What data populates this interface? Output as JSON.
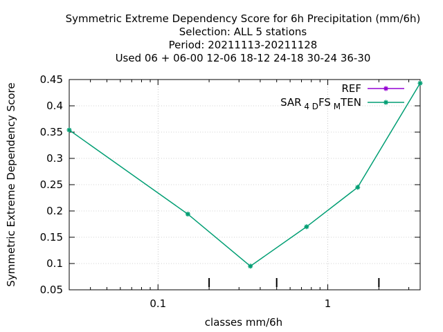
{
  "chart_data": {
    "type": "line",
    "title_lines": [
      "Symmetric Extreme Dependency Score  for 6h Precipitation (mm/6h)",
      "Selection: ALL      5 stations",
      "Period: 20211113-20211128",
      "Used  06  + 06-00 12-06 18-12 24-18 30-24 36-30"
    ],
    "xlabel": "classes mm/6h",
    "ylabel": "Symmetric Extreme Dependency Score",
    "xscale": "log",
    "xlim": [
      0.03,
      3.5
    ],
    "ylim": [
      0.05,
      0.45
    ],
    "grid": true,
    "legend_position": "top-right",
    "x_ticks": [
      {
        "value": 0.1,
        "label": "0.1"
      },
      {
        "value": 1,
        "label": "1"
      }
    ],
    "x_minor_ticks": [
      0.04,
      0.05,
      0.06,
      0.07,
      0.08,
      0.09,
      0.2,
      0.3,
      0.4,
      0.5,
      0.6,
      0.7,
      0.8,
      0.9,
      2,
      3
    ],
    "x_extra_ticks": [
      0.2,
      0.5,
      2
    ],
    "y_ticks": [
      {
        "value": 0.05,
        "label": "0.05"
      },
      {
        "value": 0.1,
        "label": "0.1"
      },
      {
        "value": 0.15,
        "label": "0.15"
      },
      {
        "value": 0.2,
        "label": "0.2"
      },
      {
        "value": 0.25,
        "label": "0.25"
      },
      {
        "value": 0.3,
        "label": "0.3"
      },
      {
        "value": 0.35,
        "label": "0.35"
      },
      {
        "value": 0.4,
        "label": "0.4"
      },
      {
        "value": 0.45,
        "label": "0.45"
      }
    ],
    "series": [
      {
        "name": "REF",
        "color": "#9400d3",
        "x": [],
        "y": []
      },
      {
        "name": "SAR_4D FS_M TEN",
        "color": "#009e73",
        "x": [
          0.03,
          0.15,
          0.35,
          0.75,
          1.5,
          3.5
        ],
        "y": [
          0.354,
          0.194,
          0.095,
          0.17,
          0.245,
          0.443
        ]
      }
    ]
  }
}
